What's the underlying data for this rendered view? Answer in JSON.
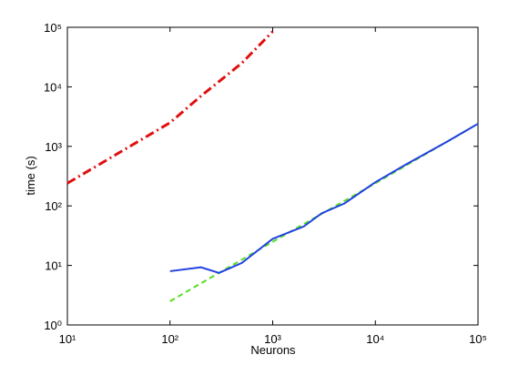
{
  "chart_data": {
    "type": "line",
    "xlabel": "Neurons",
    "ylabel": "time (s)",
    "log_x": true,
    "log_y": true,
    "xlim": [
      10,
      100000
    ],
    "xticks": [
      {
        "value": 10,
        "label": "10¹"
      },
      {
        "value": 100,
        "label": "10²"
      },
      {
        "value": 1000,
        "label": "10³"
      },
      {
        "value": 10000,
        "label": "10⁴"
      },
      {
        "value": 100000,
        "label": "10⁵"
      }
    ],
    "ylim": [
      1,
      100000
    ],
    "yticks": [
      {
        "value": 1,
        "label": "10⁰"
      },
      {
        "value": 10,
        "label": "10¹"
      },
      {
        "value": 100,
        "label": "10²"
      },
      {
        "value": 1000,
        "label": "10³"
      },
      {
        "value": 10000,
        "label": "10⁴"
      },
      {
        "value": 100000,
        "label": "10⁵"
      }
    ],
    "series": [
      {
        "color": "#e01010",
        "style": "dashdot",
        "width": 3,
        "x": [
          10,
          100,
          200,
          500,
          1000
        ],
        "values": [
          240,
          2500,
          7000,
          25000,
          85000
        ]
      },
      {
        "color": "#55dd22",
        "style": "dashed",
        "width": 2,
        "x": [
          100,
          1000,
          10000,
          100000
        ],
        "values": [
          2.5,
          25,
          240,
          2400
        ]
      },
      {
        "color": "#2040e0",
        "style": "solid",
        "width": 2,
        "x": [
          100,
          200,
          300,
          500,
          1000,
          2000,
          3000,
          5000,
          10000,
          20000,
          50000,
          100000
        ],
        "values": [
          8,
          9.3,
          7.5,
          11,
          28,
          45,
          75,
          110,
          250,
          500,
          1200,
          2400
        ]
      }
    ]
  }
}
